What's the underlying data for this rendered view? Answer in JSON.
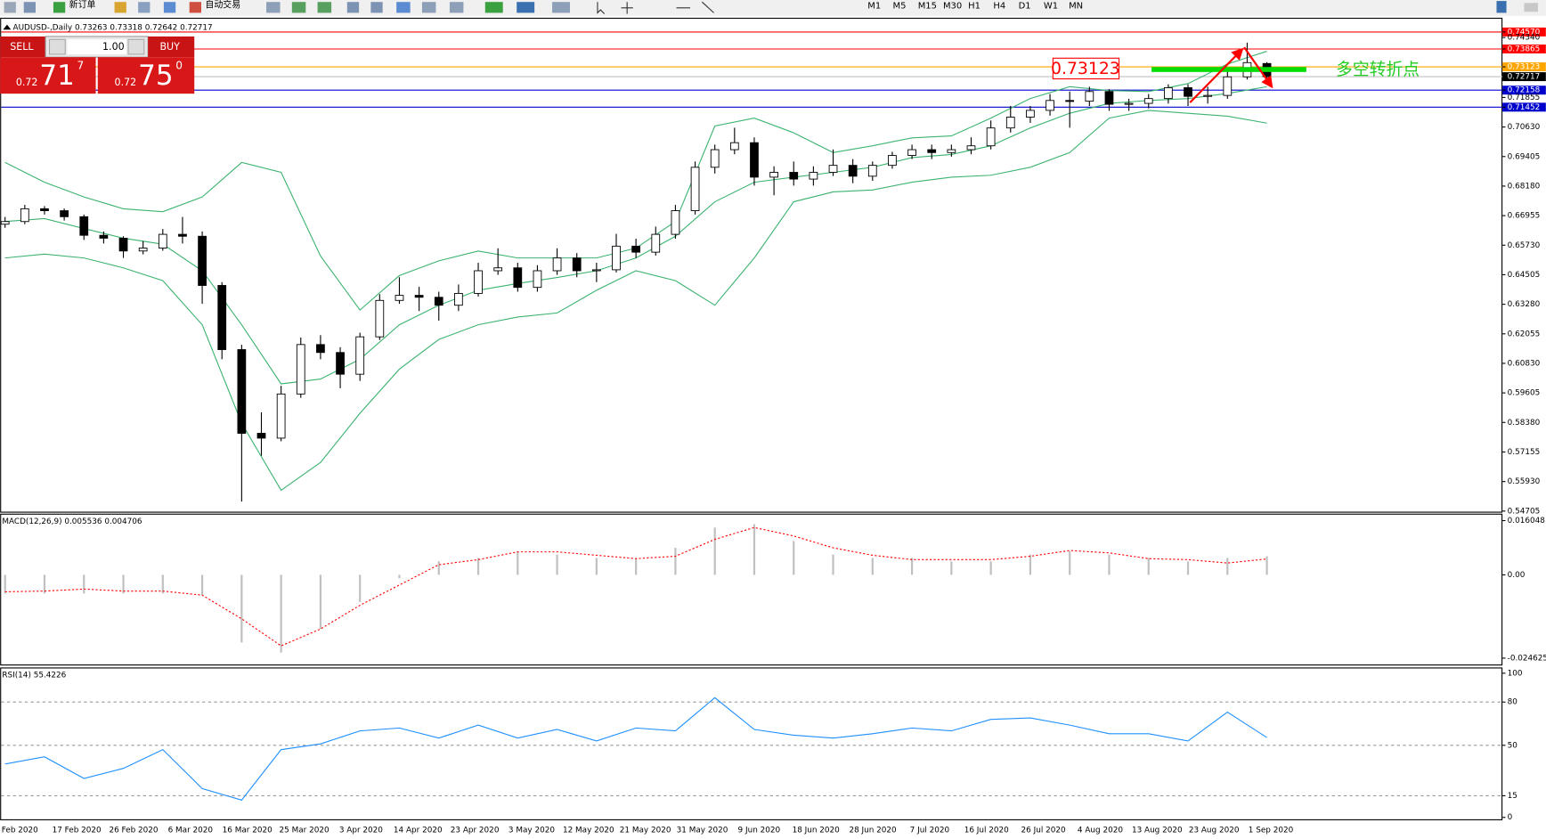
{
  "toolbar": {
    "new_order": "新订单",
    "auto_trading": "自动交易",
    "timeframes": [
      "M1",
      "M5",
      "M15",
      "M30",
      "H1",
      "H4",
      "D1",
      "W1",
      "MN"
    ]
  },
  "trade_panel": {
    "sell": "SELL",
    "lots": "1.00",
    "buy": "BUY",
    "sell_price": {
      "prefix": "0.72",
      "main": "71",
      "pip": "7"
    },
    "buy_price": {
      "prefix": "0.72",
      "main": "75",
      "pip": "0"
    }
  },
  "annotations": {
    "price_box": "0.73123",
    "label": "多空转折点"
  },
  "chart_data": [
    {
      "type": "candlestick",
      "title": "AUDUSD-,Daily 0.73263 0.73318 0.72642 0.72717",
      "open": [
        0.666,
        0.6671,
        0.6724,
        0.6716,
        0.6691,
        0.6614,
        0.6602,
        0.6549,
        0.6561,
        0.6618,
        0.661,
        0.6406,
        0.614,
        0.5793,
        0.5773,
        0.5956,
        0.6161,
        0.6128,
        0.6038,
        0.6193,
        0.6344,
        0.6365,
        0.6357,
        0.6324,
        0.6373,
        0.6467,
        0.6479,
        0.6398,
        0.6467,
        0.652,
        0.6467,
        0.6471,
        0.6569,
        0.6544,
        0.6618,
        0.6716,
        0.6896,
        0.6969,
        0.6998,
        0.6855,
        0.6875,
        0.6847,
        0.6875,
        0.6904,
        0.6859,
        0.6904,
        0.6945,
        0.6969,
        0.6957,
        0.6969,
        0.6985,
        0.7059,
        0.7104,
        0.7132,
        0.7173,
        0.717,
        0.721,
        0.7157,
        0.7161,
        0.7181,
        0.7226,
        0.719,
        0.7194,
        0.7271,
        0.73263
      ],
      "high": [
        0.669,
        0.674,
        0.6735,
        0.6725,
        0.67,
        0.663,
        0.661,
        0.659,
        0.664,
        0.669,
        0.663,
        0.642,
        0.616,
        0.588,
        0.599,
        0.619,
        0.62,
        0.615,
        0.621,
        0.637,
        0.644,
        0.64,
        0.638,
        0.641,
        0.65,
        0.656,
        0.65,
        0.649,
        0.656,
        0.654,
        0.65,
        0.662,
        0.66,
        0.665,
        0.674,
        0.692,
        0.699,
        0.706,
        0.702,
        0.69,
        0.692,
        0.69,
        0.697,
        0.693,
        0.692,
        0.696,
        0.699,
        0.699,
        0.699,
        0.702,
        0.709,
        0.715,
        0.715,
        0.72,
        0.721,
        0.723,
        0.722,
        0.718,
        0.72,
        0.724,
        0.724,
        0.723,
        0.73,
        0.7413,
        0.73318
      ],
      "low": [
        0.6645,
        0.666,
        0.67,
        0.6675,
        0.6595,
        0.658,
        0.652,
        0.6535,
        0.655,
        0.658,
        0.633,
        0.61,
        0.551,
        0.57,
        0.576,
        0.594,
        0.61,
        0.598,
        0.601,
        0.618,
        0.633,
        0.63,
        0.626,
        0.63,
        0.636,
        0.645,
        0.638,
        0.638,
        0.645,
        0.644,
        0.642,
        0.646,
        0.652,
        0.653,
        0.66,
        0.67,
        0.687,
        0.695,
        0.682,
        0.678,
        0.682,
        0.682,
        0.686,
        0.683,
        0.684,
        0.689,
        0.693,
        0.693,
        0.694,
        0.695,
        0.697,
        0.704,
        0.708,
        0.711,
        0.706,
        0.715,
        0.713,
        0.713,
        0.714,
        0.716,
        0.715,
        0.716,
        0.718,
        0.726,
        0.72642
      ],
      "close": [
        0.6671,
        0.6724,
        0.6716,
        0.6691,
        0.6614,
        0.6602,
        0.6549,
        0.6561,
        0.6618,
        0.661,
        0.6406,
        0.614,
        0.5793,
        0.5773,
        0.5956,
        0.6161,
        0.6128,
        0.6038,
        0.6193,
        0.6344,
        0.6365,
        0.6357,
        0.6324,
        0.6373,
        0.6467,
        0.6479,
        0.6398,
        0.6467,
        0.652,
        0.6467,
        0.6471,
        0.6569,
        0.6544,
        0.6618,
        0.6716,
        0.6896,
        0.6969,
        0.6998,
        0.6855,
        0.6875,
        0.6847,
        0.6875,
        0.6904,
        0.6859,
        0.6904,
        0.6945,
        0.6969,
        0.6957,
        0.6969,
        0.6985,
        0.7059,
        0.7104,
        0.7132,
        0.7173,
        0.717,
        0.721,
        0.7157,
        0.7161,
        0.7181,
        0.7226,
        0.719,
        0.7194,
        0.7271,
        0.733,
        0.72717
      ],
      "bands": {
        "color": "#3cb371",
        "upper": [
          0.6916,
          0.6834,
          0.6773,
          0.6724,
          0.6712,
          0.6773,
          0.6916,
          0.6875,
          0.6528,
          0.6304,
          0.6447,
          0.6508,
          0.6549,
          0.652,
          0.652,
          0.652,
          0.6561,
          0.6671,
          0.7067,
          0.71,
          0.7039,
          0.6957,
          0.6985,
          0.7018,
          0.7026,
          0.71,
          0.7181,
          0.723,
          0.7214,
          0.721,
          0.7243,
          0.7324,
          0.7377
        ],
        "middle": [
          0.6671,
          0.6683,
          0.6642,
          0.6602,
          0.6577,
          0.6467,
          0.6243,
          0.5998,
          0.6018,
          0.61,
          0.6243,
          0.6324,
          0.6386,
          0.6414,
          0.6439,
          0.6467,
          0.652,
          0.661,
          0.6753,
          0.6834,
          0.6855,
          0.6875,
          0.6896,
          0.6936,
          0.6949,
          0.6985,
          0.7059,
          0.712,
          0.7161,
          0.7173,
          0.7181,
          0.7202,
          0.723
        ],
        "lower": [
          0.652,
          0.6536,
          0.652,
          0.6479,
          0.6426,
          0.6243,
          0.5835,
          0.5557,
          0.5672,
          0.5876,
          0.6059,
          0.6182,
          0.6243,
          0.6275,
          0.6292,
          0.6386,
          0.6467,
          0.6426,
          0.6324,
          0.652,
          0.6753,
          0.6794,
          0.6802,
          0.6834,
          0.6855,
          0.6863,
          0.6896,
          0.6957,
          0.71,
          0.7132,
          0.712,
          0.7108,
          0.7079
        ]
      },
      "levels": [
        {
          "value": 0.7457,
          "color": "#ff0000"
        },
        {
          "value": 0.73865,
          "color": "#ff0000"
        },
        {
          "value": 0.73123,
          "color": "#ffa500"
        },
        {
          "value": 0.72158,
          "color": "#0000cd"
        },
        {
          "value": 0.71452,
          "color": "#0000cd"
        }
      ],
      "current_price": {
        "value": 0.72717,
        "color": "#000000"
      },
      "ylim": [
        0.5468,
        0.7516
      ],
      "yticks": [
        {
          "value": 0.7457,
          "label": "0.74570"
        },
        {
          "value": 0.7434,
          "label": "0.74340"
        },
        0.73865,
        0.73123,
        0.72717,
        0.72158,
        0.71855,
        0.71452,
        {
          "value": 0.7063,
          "label": "0.70630"
        },
        0.69405,
        {
          "value": 0.6818,
          "label": "0.68180"
        },
        0.66955,
        {
          "value": 0.6573,
          "label": "0.65730"
        },
        0.64505,
        {
          "value": 0.6328,
          "label": "0.63280"
        },
        0.62055,
        {
          "value": 0.6083,
          "label": "0.60830"
        },
        0.59605,
        {
          "value": 0.5838,
          "label": "0.58380"
        },
        0.57155,
        {
          "value": 0.5593,
          "label": "0.55930"
        },
        0.54705
      ],
      "x_labels": [
        "Feb 2020",
        "17 Feb 2020",
        "26 Feb 2020",
        "6 Mar 2020",
        "16 Mar 2020",
        "25 Mar 2020",
        "3 Apr 2020",
        "14 Apr 2020",
        "23 Apr 2020",
        "3 May 2020",
        "12 May 2020",
        "21 May 2020",
        "31 May 2020",
        "9 Jun 2020",
        "18 Jun 2020",
        "28 Jun 2020",
        "7 Jul 2020",
        "16 Jul 2020",
        "26 Jul 2020",
        "4 Aug 2020",
        "13 Aug 2020",
        "23 Aug 2020",
        "1 Sep 2020"
      ]
    },
    {
      "type": "macd",
      "title": "MACD(12,26,9) 0.005536 0.004706",
      "histogram": {
        "color": "#c0c0c0",
        "values": [
          -0.0055,
          -0.0055,
          -0.0055,
          -0.0055,
          -0.0055,
          -0.006,
          -0.02,
          -0.023,
          -0.016,
          -0.008,
          -0.001,
          0.004,
          0.005,
          0.007,
          0.006,
          0.005,
          0.005,
          0.008,
          0.014,
          0.015,
          0.01,
          0.006,
          0.005,
          0.005,
          0.004,
          0.004,
          0.006,
          0.007,
          0.006,
          0.005,
          0.004,
          0.005,
          0.0055
        ]
      },
      "signal": {
        "color": "#ff0000",
        "values": [
          -0.005,
          -0.0048,
          -0.0042,
          -0.0048,
          -0.0048,
          -0.006,
          -0.013,
          -0.021,
          -0.016,
          -0.009,
          -0.003,
          0.003,
          0.0045,
          0.0068,
          0.0068,
          0.0058,
          0.0048,
          0.0055,
          0.0105,
          0.014,
          0.0115,
          0.008,
          0.0058,
          0.0045,
          0.0045,
          0.0045,
          0.0055,
          0.0072,
          0.0065,
          0.0048,
          0.0045,
          0.0035,
          0.0047
        ]
      },
      "ylim": [
        -0.0268,
        0.0181
      ],
      "yticks": [
        0.016048,
        {
          "value": 0,
          "label": "0.00"
        },
        -0.024625
      ]
    },
    {
      "type": "line",
      "title": "RSI(14) 55.4226",
      "color": "#1e90ff",
      "values": [
        37,
        42,
        27,
        34,
        47,
        20,
        12,
        47,
        51,
        60,
        62,
        55,
        64,
        55,
        61,
        53,
        62,
        60,
        83,
        61,
        57,
        55,
        58,
        62,
        60,
        68,
        69,
        64,
        58,
        58,
        53,
        73,
        55.4
      ],
      "levels": [
        80,
        50,
        15
      ],
      "ylim": [
        -2,
        104
      ],
      "yticks": [
        100,
        80,
        50,
        15,
        0
      ]
    }
  ]
}
